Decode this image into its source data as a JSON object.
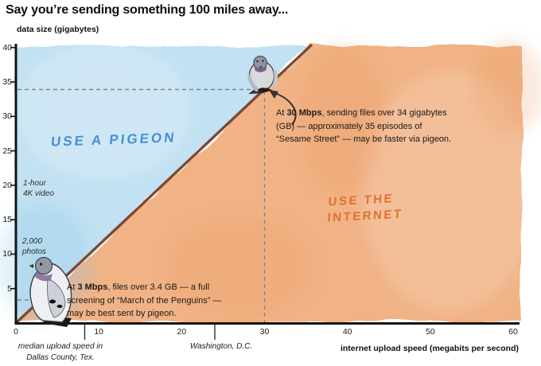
{
  "title": "Say you’re sending something 100 miles away...",
  "chart_data": {
    "type": "area",
    "title": "Say you’re sending something 100 miles away...",
    "xlabel": "internet upload speed (megabits per second)",
    "ylabel": "data size (gigabytes)",
    "xlim": [
      0,
      60
    ],
    "ylim": [
      0,
      40
    ],
    "x_ticks": [
      0,
      10,
      20,
      30,
      40,
      50,
      60
    ],
    "y_ticks": [
      5,
      10,
      15,
      20,
      25,
      30,
      35,
      40
    ],
    "grid": "off",
    "boundary_line": {
      "description": "break-even line: data size above which a pigeon beats the internet over 100 miles",
      "color": "#7a4a33",
      "points": [
        [
          0,
          0
        ],
        [
          3,
          3.4
        ],
        [
          30,
          34
        ],
        [
          35.3,
          40
        ]
      ]
    },
    "regions": [
      {
        "label": "USE A PIGEON",
        "position": "above-line",
        "fill": "#bfe0f2",
        "text_color": "#4390d8"
      },
      {
        "line1": "USE THE",
        "line2": "INTERNET",
        "position": "below-line",
        "fill": "#f1b183",
        "text_color": "#e0702f"
      }
    ],
    "reference_points": [
      {
        "x_mbps": 30,
        "y_gb": 34,
        "marker": "pigeon"
      },
      {
        "x_mbps": 3,
        "y_gb": 3.4,
        "marker": "pigeon"
      }
    ],
    "dashed_guides": [
      {
        "axis": "y",
        "value_gb": 34,
        "to_mbps": 30
      },
      {
        "axis": "x",
        "value_mbps": 30,
        "to_gb": 34
      },
      {
        "axis": "y",
        "value_gb": 3.4,
        "to_mbps": 3
      }
    ],
    "y_axis_annotations": [
      {
        "value_gb": 20,
        "lines": [
          "1-hour",
          "4K video"
        ]
      },
      {
        "value_gb": 10,
        "lines": [
          "2,000",
          "photos"
        ]
      }
    ],
    "x_axis_annotations": [
      {
        "approx_mbps": 8.3,
        "lines": [
          "median upload speed in",
          "Dallas County, Tex."
        ]
      },
      {
        "approx_mbps": 24,
        "lines": [
          "Washington, D.C."
        ]
      }
    ]
  },
  "annotations": {
    "high": {
      "prefix": "At ",
      "bold": "30 Mbps",
      "rest": ", sending files over 34 gigabytes (GB) — approximately 35 episodes of “Sesame Street” — may be faster via pigeon."
    },
    "low": {
      "prefix": "At ",
      "bold": "3 Mbps",
      "rest": ", files over 3.4 GB — a full screening of “March of the Penguins” — may be best sent by pigeon."
    }
  },
  "palette": {
    "pigeon_region_fill": "#bfe0f2",
    "internet_region_fill": "#f1b183",
    "boundary_line": "#7a4a33",
    "dashed_guides": "#858585",
    "axis": "#141414",
    "pigeon_label_text": "#4390d8",
    "internet_label_text": "#e0702f"
  }
}
